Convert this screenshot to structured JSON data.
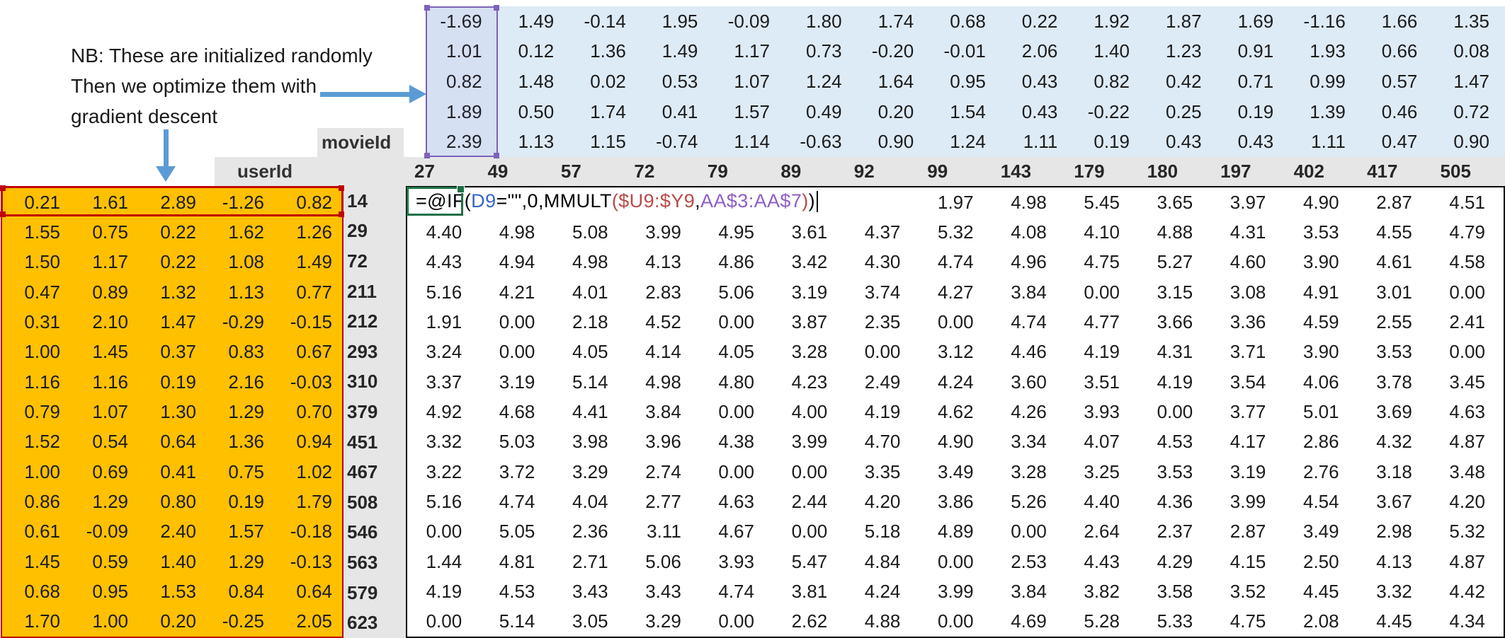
{
  "annotation": {
    "line1": "NB: These are initialized randomly",
    "line2": "Then we optimize them with",
    "line3": "gradient descent"
  },
  "labels": {
    "movie_id": "movieId",
    "user_id": "userId"
  },
  "movie_ids": [
    "27",
    "49",
    "57",
    "72",
    "79",
    "89",
    "92",
    "99",
    "143",
    "179",
    "180",
    "197",
    "402",
    "417",
    "505"
  ],
  "user_ids": [
    "14",
    "29",
    "72",
    "211",
    "212",
    "293",
    "310",
    "379",
    "451",
    "467",
    "508",
    "546",
    "563",
    "579",
    "623"
  ],
  "movie_factors": [
    [
      "-1.69",
      "1.49",
      "-0.14",
      "1.95",
      "-0.09",
      "1.80",
      "1.74",
      "0.68",
      "0.22",
      "1.92",
      "1.87",
      "1.69",
      "-1.16",
      "1.66",
      "1.35"
    ],
    [
      "1.01",
      "0.12",
      "1.36",
      "1.49",
      "1.17",
      "0.73",
      "-0.20",
      "-0.01",
      "2.06",
      "1.40",
      "1.23",
      "0.91",
      "1.93",
      "0.66",
      "0.08"
    ],
    [
      "0.82",
      "1.48",
      "0.02",
      "0.53",
      "1.07",
      "1.24",
      "1.64",
      "0.95",
      "0.43",
      "0.82",
      "0.42",
      "0.71",
      "0.99",
      "0.57",
      "1.47"
    ],
    [
      "1.89",
      "0.50",
      "1.74",
      "0.41",
      "1.57",
      "0.49",
      "0.20",
      "1.54",
      "0.43",
      "-0.22",
      "0.25",
      "0.19",
      "1.39",
      "0.46",
      "0.72"
    ],
    [
      "2.39",
      "1.13",
      "1.15",
      "-0.74",
      "1.14",
      "-0.63",
      "0.90",
      "1.24",
      "1.11",
      "0.19",
      "0.43",
      "0.43",
      "1.11",
      "0.47",
      "0.90"
    ]
  ],
  "user_factors": [
    [
      "0.21",
      "1.61",
      "2.89",
      "-1.26",
      "0.82"
    ],
    [
      "1.55",
      "0.75",
      "0.22",
      "1.62",
      "1.26"
    ],
    [
      "1.50",
      "1.17",
      "0.22",
      "1.08",
      "1.49"
    ],
    [
      "0.47",
      "0.89",
      "1.32",
      "1.13",
      "0.77"
    ],
    [
      "0.31",
      "2.10",
      "1.47",
      "-0.29",
      "-0.15"
    ],
    [
      "1.00",
      "1.45",
      "0.37",
      "0.83",
      "0.67"
    ],
    [
      "1.16",
      "1.16",
      "0.19",
      "2.16",
      "-0.03"
    ],
    [
      "0.79",
      "1.07",
      "1.30",
      "1.29",
      "0.70"
    ],
    [
      "1.52",
      "0.54",
      "0.64",
      "1.36",
      "0.94"
    ],
    [
      "1.00",
      "0.69",
      "0.41",
      "0.75",
      "1.02"
    ],
    [
      "0.86",
      "1.29",
      "0.80",
      "0.19",
      "1.79"
    ],
    [
      "0.61",
      "-0.09",
      "2.40",
      "1.57",
      "-0.18"
    ],
    [
      "1.45",
      "0.59",
      "1.40",
      "1.29",
      "-0.13"
    ],
    [
      "0.68",
      "0.95",
      "1.53",
      "0.84",
      "0.64"
    ],
    [
      "1.70",
      "1.00",
      "0.20",
      "-0.25",
      "2.05"
    ]
  ],
  "predictions": {
    "rows": [
      [
        "",
        "",
        "",
        "",
        "",
        "",
        "",
        "1.97",
        "4.98",
        "5.45",
        "3.65",
        "3.97",
        "4.90",
        "2.87",
        "4.51"
      ],
      [
        "4.40",
        "4.98",
        "5.08",
        "3.99",
        "4.95",
        "3.61",
        "4.37",
        "5.32",
        "4.08",
        "4.10",
        "4.88",
        "4.31",
        "3.53",
        "4.55",
        "4.79"
      ],
      [
        "4.43",
        "4.94",
        "4.98",
        "4.13",
        "4.86",
        "3.42",
        "4.30",
        "4.74",
        "4.96",
        "4.75",
        "5.27",
        "4.60",
        "3.90",
        "4.61",
        "4.58"
      ],
      [
        "5.16",
        "4.21",
        "4.01",
        "2.83",
        "5.06",
        "3.19",
        "3.74",
        "4.27",
        "3.84",
        "0.00",
        "3.15",
        "3.08",
        "4.91",
        "3.01",
        "0.00"
      ],
      [
        "1.91",
        "0.00",
        "2.18",
        "4.52",
        "0.00",
        "3.87",
        "2.35",
        "0.00",
        "4.74",
        "4.77",
        "3.66",
        "3.36",
        "4.59",
        "2.55",
        "2.41"
      ],
      [
        "3.24",
        "0.00",
        "4.05",
        "4.14",
        "4.05",
        "3.28",
        "0.00",
        "3.12",
        "4.46",
        "4.19",
        "4.31",
        "3.71",
        "3.90",
        "3.53",
        "0.00"
      ],
      [
        "3.37",
        "3.19",
        "5.14",
        "4.98",
        "4.80",
        "4.23",
        "2.49",
        "4.24",
        "3.60",
        "3.51",
        "4.19",
        "3.54",
        "4.06",
        "3.78",
        "3.45"
      ],
      [
        "4.92",
        "4.68",
        "4.41",
        "3.84",
        "0.00",
        "4.00",
        "4.19",
        "4.62",
        "4.26",
        "3.93",
        "0.00",
        "3.77",
        "5.01",
        "3.69",
        "4.63"
      ],
      [
        "3.32",
        "5.03",
        "3.98",
        "3.96",
        "4.38",
        "3.99",
        "4.70",
        "4.90",
        "3.34",
        "4.07",
        "4.53",
        "4.17",
        "2.86",
        "4.32",
        "4.87"
      ],
      [
        "3.22",
        "3.72",
        "3.29",
        "2.74",
        "0.00",
        "0.00",
        "3.35",
        "3.49",
        "3.28",
        "3.25",
        "3.53",
        "3.19",
        "2.76",
        "3.18",
        "3.48"
      ],
      [
        "5.16",
        "4.74",
        "4.04",
        "2.77",
        "4.63",
        "2.44",
        "4.20",
        "3.86",
        "5.26",
        "4.40",
        "4.36",
        "3.99",
        "4.54",
        "3.67",
        "4.20"
      ],
      [
        "0.00",
        "5.05",
        "2.36",
        "3.11",
        "4.67",
        "0.00",
        "5.18",
        "4.89",
        "0.00",
        "2.64",
        "2.37",
        "2.87",
        "3.49",
        "2.98",
        "5.32"
      ],
      [
        "1.44",
        "4.81",
        "2.71",
        "5.06",
        "3.93",
        "5.47",
        "4.84",
        "0.00",
        "2.53",
        "4.43",
        "4.29",
        "4.15",
        "2.50",
        "4.13",
        "4.87"
      ],
      [
        "4.19",
        "4.53",
        "3.43",
        "3.43",
        "4.74",
        "3.81",
        "4.24",
        "3.99",
        "3.84",
        "3.82",
        "3.58",
        "3.52",
        "4.45",
        "3.32",
        "4.42"
      ],
      [
        "0.00",
        "5.14",
        "3.05",
        "3.29",
        "0.00",
        "2.62",
        "4.88",
        "0.00",
        "4.69",
        "5.28",
        "5.33",
        "4.75",
        "2.08",
        "4.45",
        "4.34"
      ]
    ]
  },
  "formula": {
    "full_text": "=@IF(D9=\"\",0,MMULT($U9:$Y9,AA$3:AA$7))",
    "tokens": [
      {
        "t": "=@IF(",
        "c": "#000000"
      },
      {
        "t": "D9",
        "c": "#3467C9"
      },
      {
        "t": "=\"\"",
        "c": "#000000"
      },
      {
        "t": ",0,MMULT",
        "c": "#000000"
      },
      {
        "t": "(",
        "c": "#B94A48"
      },
      {
        "t": "$U9:$Y9",
        "c": "#B94A48"
      },
      {
        "t": ",",
        "c": "#000000"
      },
      {
        "t": "AA$3:AA$7",
        "c": "#8E5EC8"
      },
      {
        "t": ")",
        "c": "#B94A48"
      },
      {
        "t": ")",
        "c": "#000000"
      }
    ]
  },
  "colors": {
    "arrow_blue": "#5B9BD5",
    "movie_matrix_fill": "#DDEBF7",
    "user_matrix_fill": "#FFC000",
    "header_gray_fill": "#E7E6E6",
    "selection_red": "#C00000",
    "selection_purple": "#7C62B8",
    "edit_green": "#1E7145"
  }
}
